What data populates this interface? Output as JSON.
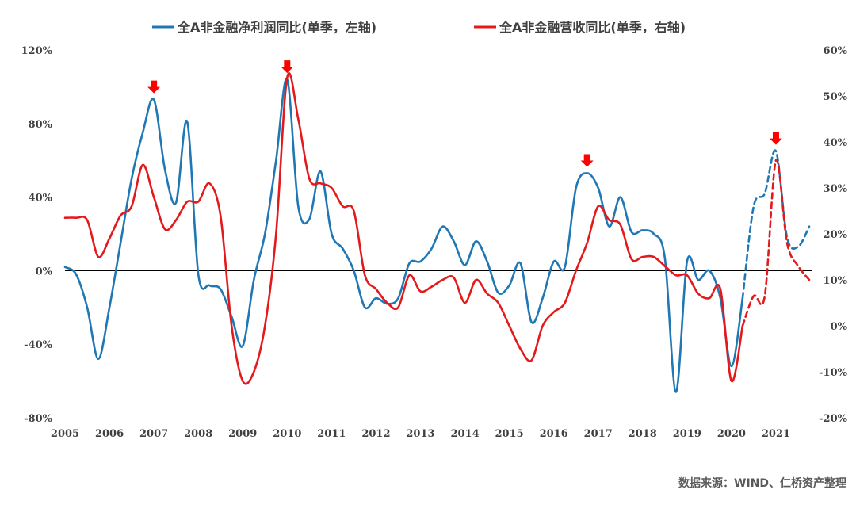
{
  "chart_data": {
    "type": "line",
    "title": "",
    "xlabel": "",
    "ylabel": "",
    "x_ticks": [
      "2005",
      "2006",
      "2007",
      "2008",
      "2009",
      "2010",
      "2011",
      "2012",
      "2013",
      "2014",
      "2015",
      "2016",
      "2017",
      "2018",
      "2019",
      "2020",
      "2021"
    ],
    "y_left": {
      "ticks": [
        "120%",
        "80%",
        "40%",
        "0%",
        "-40%",
        "-80%"
      ],
      "ylim": [
        -80,
        120
      ]
    },
    "y_right": {
      "ticks": [
        "60%",
        "50%",
        "40%",
        "30%",
        "20%",
        "10%",
        "0%",
        "-10%",
        "-20%"
      ],
      "ylim": [
        -20,
        60
      ]
    },
    "grid": false,
    "legend_position": "top-center",
    "series": [
      {
        "name": "全A非金融净利润同比(单季，左轴)",
        "axis": "left",
        "color": "#1f77b4",
        "points": [
          [
            2005.0,
            2
          ],
          [
            2005.25,
            -2
          ],
          [
            2005.5,
            -20
          ],
          [
            2005.75,
            -48
          ],
          [
            2006.0,
            -20
          ],
          [
            2006.25,
            15
          ],
          [
            2006.5,
            50
          ],
          [
            2006.75,
            75
          ],
          [
            2007.0,
            93
          ],
          [
            2007.25,
            55
          ],
          [
            2007.5,
            37
          ],
          [
            2007.75,
            81
          ],
          [
            2008.0,
            -2
          ],
          [
            2008.25,
            -8
          ],
          [
            2008.5,
            -10
          ],
          [
            2008.75,
            -25
          ],
          [
            2009.0,
            -41
          ],
          [
            2009.25,
            -5
          ],
          [
            2009.5,
            20
          ],
          [
            2009.75,
            60
          ],
          [
            2010.0,
            104
          ],
          [
            2010.25,
            35
          ],
          [
            2010.5,
            28
          ],
          [
            2010.75,
            54
          ],
          [
            2011.0,
            20
          ],
          [
            2011.25,
            12
          ],
          [
            2011.5,
            0
          ],
          [
            2011.75,
            -20
          ],
          [
            2012.0,
            -15
          ],
          [
            2012.25,
            -18
          ],
          [
            2012.5,
            -15
          ],
          [
            2012.75,
            4
          ],
          [
            2013.0,
            5
          ],
          [
            2013.25,
            12
          ],
          [
            2013.5,
            24
          ],
          [
            2013.75,
            16
          ],
          [
            2014.0,
            3
          ],
          [
            2014.25,
            16
          ],
          [
            2014.5,
            5
          ],
          [
            2014.75,
            -12
          ],
          [
            2015.0,
            -8
          ],
          [
            2015.25,
            4
          ],
          [
            2015.5,
            -28
          ],
          [
            2015.75,
            -15
          ],
          [
            2016.0,
            5
          ],
          [
            2016.25,
            2
          ],
          [
            2016.5,
            45
          ],
          [
            2016.75,
            53
          ],
          [
            2017.0,
            45
          ],
          [
            2017.25,
            24
          ],
          [
            2017.5,
            40
          ],
          [
            2017.75,
            21
          ],
          [
            2018.0,
            22
          ],
          [
            2018.25,
            20
          ],
          [
            2018.5,
            7
          ],
          [
            2018.75,
            -66
          ],
          [
            2019.0,
            5
          ],
          [
            2019.25,
            -5
          ],
          [
            2019.5,
            0
          ],
          [
            2019.75,
            -15
          ],
          [
            2020.0,
            -52
          ],
          [
            2020.25,
            -15
          ]
        ],
        "forecast_points": [
          [
            2020.25,
            -15
          ],
          [
            2020.5,
            35
          ],
          [
            2020.75,
            42
          ],
          [
            2021.0,
            65
          ],
          [
            2021.25,
            18
          ],
          [
            2021.5,
            13
          ],
          [
            2021.75,
            24
          ]
        ]
      },
      {
        "name": "全A非金融营收同比(单季，右轴)",
        "axis": "right",
        "color": "#e31a1c",
        "points": [
          [
            2005.0,
            23.5
          ],
          [
            2005.25,
            23.5
          ],
          [
            2005.5,
            23
          ],
          [
            2005.75,
            15
          ],
          [
            2006.0,
            19
          ],
          [
            2006.25,
            24
          ],
          [
            2006.5,
            26
          ],
          [
            2006.75,
            35
          ],
          [
            2007.0,
            28
          ],
          [
            2007.25,
            21
          ],
          [
            2007.5,
            23
          ],
          [
            2007.75,
            27
          ],
          [
            2008.0,
            27
          ],
          [
            2008.25,
            31
          ],
          [
            2008.5,
            24
          ],
          [
            2008.75,
            0
          ],
          [
            2009.0,
            -12
          ],
          [
            2009.25,
            -10
          ],
          [
            2009.5,
            0
          ],
          [
            2009.75,
            20
          ],
          [
            2010.0,
            54
          ],
          [
            2010.25,
            45
          ],
          [
            2010.5,
            32
          ],
          [
            2010.75,
            31
          ],
          [
            2011.0,
            30
          ],
          [
            2011.25,
            26
          ],
          [
            2011.5,
            25
          ],
          [
            2011.75,
            11
          ],
          [
            2012.0,
            8
          ],
          [
            2012.25,
            5
          ],
          [
            2012.5,
            4
          ],
          [
            2012.75,
            11
          ],
          [
            2013.0,
            7.5
          ],
          [
            2013.25,
            8.5
          ],
          [
            2013.5,
            10
          ],
          [
            2013.75,
            10.5
          ],
          [
            2014.0,
            5
          ],
          [
            2014.25,
            10
          ],
          [
            2014.5,
            7
          ],
          [
            2014.75,
            5
          ],
          [
            2015.0,
            0
          ],
          [
            2015.25,
            -5
          ],
          [
            2015.5,
            -7.5
          ],
          [
            2015.75,
            0
          ],
          [
            2016.0,
            3
          ],
          [
            2016.25,
            5
          ],
          [
            2016.5,
            12
          ],
          [
            2016.75,
            18
          ],
          [
            2017.0,
            26
          ],
          [
            2017.25,
            23
          ],
          [
            2017.5,
            22
          ],
          [
            2017.75,
            14.5
          ],
          [
            2018.0,
            15
          ],
          [
            2018.25,
            15
          ],
          [
            2018.5,
            13
          ],
          [
            2018.75,
            11
          ],
          [
            2019.0,
            11
          ],
          [
            2019.25,
            7
          ],
          [
            2019.5,
            6
          ],
          [
            2019.75,
            8
          ],
          [
            2020.0,
            -12
          ],
          [
            2020.25,
            0
          ]
        ],
        "forecast_points": [
          [
            2020.25,
            0
          ],
          [
            2020.5,
            6.5
          ],
          [
            2020.75,
            6.5
          ],
          [
            2021.0,
            36
          ],
          [
            2021.25,
            18
          ],
          [
            2021.5,
            13
          ],
          [
            2021.75,
            10
          ]
        ]
      }
    ],
    "annotations": [
      {
        "type": "down-arrow",
        "x": 2007.0,
        "axis": "left",
        "y": 93
      },
      {
        "type": "down-arrow",
        "x": 2010.0,
        "axis": "left",
        "y": 104
      },
      {
        "type": "down-arrow",
        "x": 2016.75,
        "axis": "left",
        "y": 53
      },
      {
        "type": "down-arrow",
        "x": 2021.0,
        "axis": "left",
        "y": 65
      }
    ],
    "arrow_color": "#ff0000"
  },
  "source": "数据来源：WIND、仁桥资产整理"
}
